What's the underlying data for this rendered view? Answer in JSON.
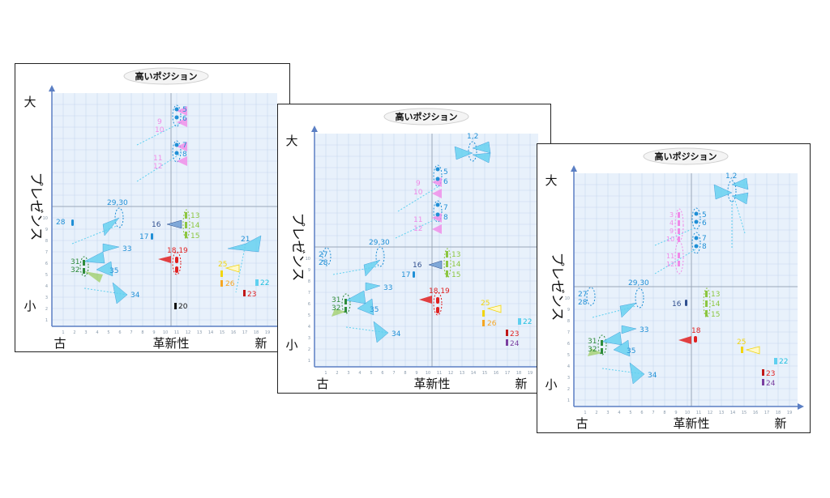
{
  "panels": [
    {
      "id": "panel-1",
      "title": "高いポジション",
      "y_label_top": "大",
      "y_label_side": "プレゼンス",
      "y_label_bottom": "小",
      "x_label_left": "古",
      "x_label_center": "革新性",
      "x_label_right": "新"
    },
    {
      "id": "panel-2",
      "title": "高いポジション",
      "y_label_top": "大",
      "y_label_side": "プレゼンス",
      "y_label_bottom": "小",
      "x_label_left": "古",
      "x_label_center": "革新性",
      "x_label_right": "新"
    },
    {
      "id": "panel-3",
      "title": "高いポジション",
      "y_label_top": "大",
      "y_label_side": "プレゼンス",
      "y_label_bottom": "小",
      "x_label_left": "古",
      "x_label_center": "革新性",
      "x_label_right": "新"
    }
  ],
  "x_axis_ticks": [
    "1",
    "2",
    "3",
    "4",
    "5",
    "6",
    "7",
    "8",
    "9",
    "10",
    "11",
    "12",
    "13",
    "14",
    "15",
    "16",
    "17",
    "18",
    "19"
  ],
  "y_axis_ticks": [
    "1",
    "2",
    "3",
    "4",
    "5",
    "6",
    "7",
    "8",
    "9",
    "10"
  ],
  "colors": {
    "grid_bg": "#e8f1fb",
    "grid_line": "#c5d8ee",
    "axis": "#5b7fc4",
    "cyan": "#5fd0f0",
    "blue": "#1f8fd6",
    "pink": "#f08ae8",
    "green": "#8cc63f",
    "dark_green": "#2e8b3a",
    "red": "#e02020",
    "yellow": "#f2d50f",
    "orange": "#f5a623",
    "navy": "#2f4f8f",
    "purple": "#7a3fa0"
  },
  "panel_1_markers": {
    "m5": "5",
    "m6": "6",
    "m9": "9",
    "m10": "10",
    "m7": "7",
    "m8": "8",
    "m11": "11",
    "m12": "12",
    "m29_30": "29,30",
    "m28": "28",
    "m16": "16",
    "m17": "17",
    "m13": "13",
    "m14": "14",
    "m15": "15",
    "m21": "21",
    "m33": "33",
    "m18_19": "18,19",
    "m31": "31",
    "m32": "32",
    "m35": "35",
    "m25": "25",
    "m26": "26",
    "m22": "22",
    "m23": "23",
    "m34": "34",
    "m20": "20"
  },
  "panel_2_markers": {
    "m1_2": "1,2",
    "m5": "5",
    "m6": "6",
    "m9": "9",
    "m10": "10",
    "m7": "7",
    "m8": "8",
    "m11": "11",
    "m12": "12",
    "m27": "27",
    "m28": "28",
    "m29_30": "29,30",
    "m13": "13",
    "m14": "14",
    "m15": "15",
    "m16": "16",
    "m17": "17",
    "m33": "33",
    "m18_19": "18,19",
    "m31": "31",
    "m32": "32",
    "m35": "35",
    "m25": "25",
    "m26": "26",
    "m22": "22",
    "m23": "23",
    "m24": "24",
    "m34": "34"
  },
  "panel_3_markers": {
    "m1_2": "1,2",
    "m3": "3",
    "m4": "4",
    "m5": "5",
    "m6": "6",
    "m9": "9",
    "m10": "10",
    "m7": "7",
    "m8": "8",
    "m11": "11",
    "m12": "12",
    "m27": "27",
    "m28": "28",
    "m29_30": "29,30",
    "m16": "16",
    "m13": "13",
    "m14": "14",
    "m15": "15",
    "m33": "33",
    "m18": "18",
    "m31": "31",
    "m32": "32",
    "m35": "35",
    "m25": "25",
    "m22": "22",
    "m23": "23",
    "m24": "24",
    "m34": "34"
  }
}
